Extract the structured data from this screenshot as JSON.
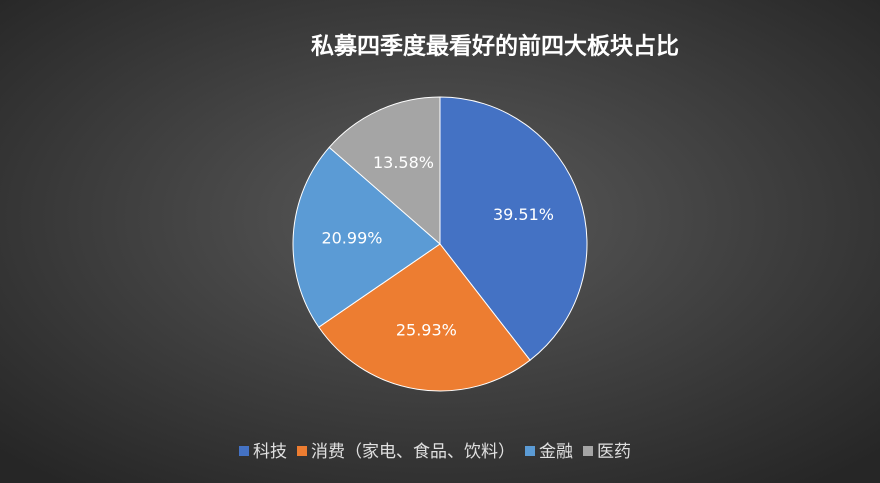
{
  "chart_data": {
    "type": "pie",
    "title": "私募四季度最看好的前四大板块占比",
    "categories": [
      "科技",
      "消费（家电、食品、饮料）",
      "金融",
      "医药"
    ],
    "values": [
      39.51,
      25.93,
      20.99,
      13.58
    ],
    "value_labels": [
      "39.51%",
      "25.93%",
      "20.99%",
      "13.58%"
    ],
    "colors": [
      "#4472c4",
      "#ed7d31",
      "#5b9bd5",
      "#a5a5a5"
    ],
    "legend": "bottom"
  }
}
